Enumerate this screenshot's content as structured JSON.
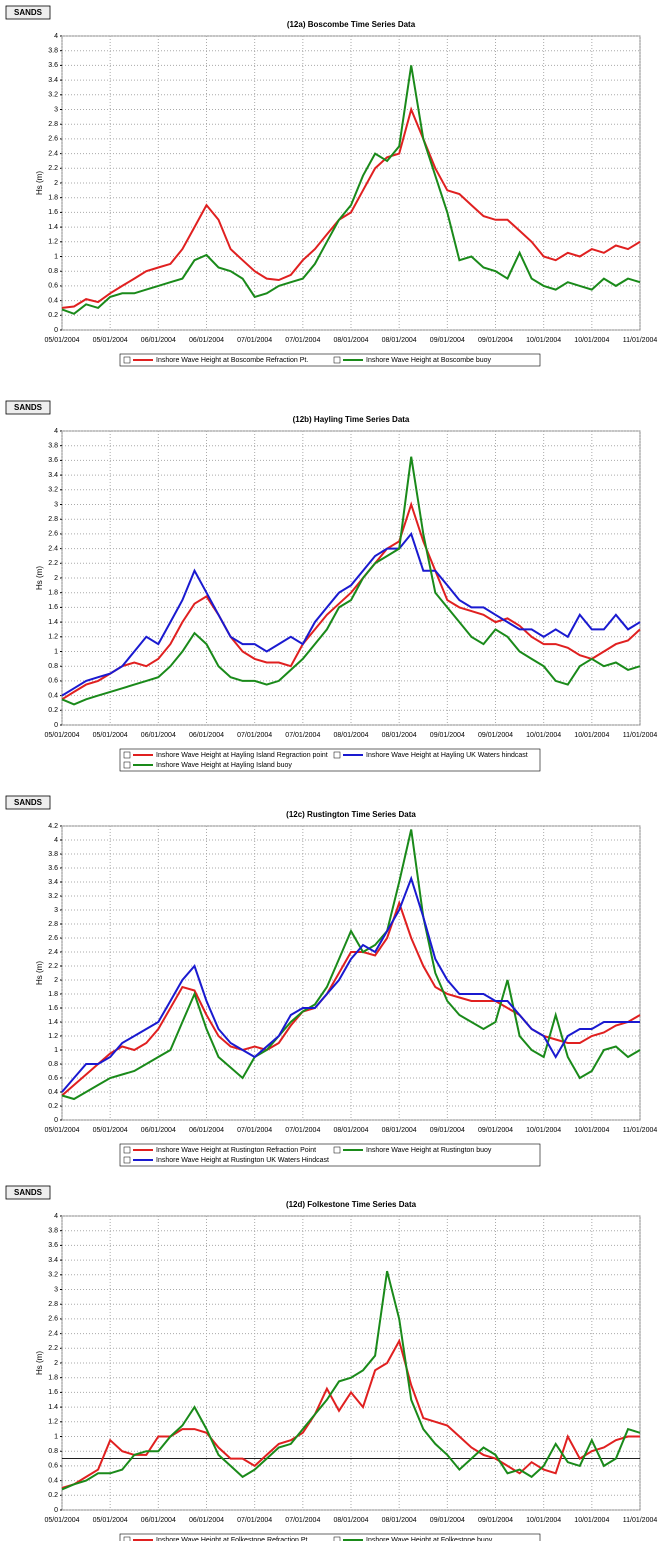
{
  "chart_data": [
    {
      "type": "line",
      "badge": "SANDS",
      "title": "(12a) Boscombe Time Series Data",
      "ylabel": "Hs (m)",
      "categories": [
        "05/01/2004",
        null,
        null,
        null,
        "05/01/2004",
        null,
        null,
        null,
        "06/01/2004",
        null,
        null,
        null,
        "06/01/2004",
        null,
        null,
        null,
        "07/01/2004",
        null,
        null,
        null,
        "07/01/2004",
        null,
        null,
        null,
        "08/01/2004",
        null,
        null,
        null,
        "08/01/2004",
        null,
        null,
        null,
        "09/01/2004",
        null,
        null,
        null,
        "09/01/2004",
        null,
        null,
        null,
        "10/01/2004",
        null,
        null,
        null,
        "10/01/2004",
        null,
        null,
        null,
        "11/01/2004"
      ],
      "ylim": [
        0,
        4
      ],
      "yticks": [
        0,
        0.2,
        0.4,
        0.6,
        0.8,
        1,
        1.2,
        1.4,
        1.6,
        1.8,
        2,
        2.2,
        2.4,
        2.6,
        2.8,
        3,
        3.2,
        3.4,
        3.6,
        3.8,
        4
      ],
      "grid": true,
      "legend": "bottom",
      "series": [
        {
          "name": "Inshore Wave Height at Boscombe Refraction Pt.",
          "color": "#e02020",
          "values": [
            0.3,
            0.32,
            0.42,
            0.38,
            0.5,
            0.6,
            0.7,
            0.8,
            0.85,
            0.9,
            1.1,
            1.4,
            1.7,
            1.5,
            1.1,
            0.95,
            0.8,
            0.7,
            0.68,
            0.75,
            0.95,
            1.1,
            1.3,
            1.5,
            1.6,
            1.9,
            2.2,
            2.35,
            2.4,
            3,
            2.6,
            2.2,
            1.9,
            1.85,
            1.7,
            1.55,
            1.5,
            1.5,
            1.35,
            1.2,
            1,
            0.95,
            1.05,
            1,
            1.1,
            1.05,
            1.15,
            1.1,
            1.2
          ]
        },
        {
          "name": "Inshore Wave Height at Boscombe buoy",
          "color": "#1a8a1a",
          "values": [
            0.28,
            0.22,
            0.35,
            0.3,
            0.45,
            0.5,
            0.5,
            0.55,
            0.6,
            0.65,
            0.7,
            0.95,
            1.02,
            0.85,
            0.8,
            0.7,
            0.45,
            0.5,
            0.6,
            0.65,
            0.7,
            0.9,
            1.2,
            1.5,
            1.7,
            2.1,
            2.4,
            2.3,
            2.5,
            3.6,
            2.6,
            2.1,
            1.6,
            0.95,
            1,
            0.85,
            0.8,
            0.7,
            1.05,
            0.7,
            0.6,
            0.55,
            0.65,
            0.6,
            0.55,
            0.7,
            0.6,
            0.7,
            0.65
          ]
        }
      ]
    },
    {
      "type": "line",
      "badge": "SANDS",
      "title": "(12b) Hayling Time Series Data",
      "ylabel": "Hs (m)",
      "categories": [
        "05/01/2004",
        null,
        null,
        null,
        "05/01/2004",
        null,
        null,
        null,
        "06/01/2004",
        null,
        null,
        null,
        "06/01/2004",
        null,
        null,
        null,
        "07/01/2004",
        null,
        null,
        null,
        "07/01/2004",
        null,
        null,
        null,
        "08/01/2004",
        null,
        null,
        null,
        "08/01/2004",
        null,
        null,
        null,
        "09/01/2004",
        null,
        null,
        null,
        "09/01/2004",
        null,
        null,
        null,
        "10/01/2004",
        null,
        null,
        null,
        "10/01/2004",
        null,
        null,
        null,
        "11/01/2004"
      ],
      "ylim": [
        0,
        4
      ],
      "yticks": [
        0,
        0.2,
        0.4,
        0.6,
        0.8,
        1,
        1.2,
        1.4,
        1.6,
        1.8,
        2,
        2.2,
        2.4,
        2.6,
        2.8,
        3,
        3.2,
        3.4,
        3.6,
        3.8,
        4
      ],
      "grid": true,
      "legend": "bottom",
      "series": [
        {
          "name": "Inshore Wave Height at Hayling Island Regraction point",
          "color": "#e02020",
          "values": [
            0.35,
            0.45,
            0.55,
            0.6,
            0.7,
            0.8,
            0.85,
            0.8,
            0.9,
            1.1,
            1.4,
            1.65,
            1.75,
            1.5,
            1.2,
            1,
            0.9,
            0.85,
            0.85,
            0.8,
            1.1,
            1.3,
            1.5,
            1.65,
            1.8,
            2,
            2.2,
            2.4,
            2.5,
            3,
            2.5,
            2.1,
            1.7,
            1.6,
            1.55,
            1.5,
            1.4,
            1.45,
            1.35,
            1.2,
            1.1,
            1.1,
            1.05,
            0.95,
            0.9,
            1,
            1.1,
            1.15,
            1.3
          ]
        },
        {
          "name": "Inshore Wave Height at Hayling UK Waters hindcast",
          "color": "#1a1ad0",
          "values": [
            0.4,
            0.5,
            0.6,
            0.65,
            0.7,
            0.8,
            1,
            1.2,
            1.1,
            1.4,
            1.7,
            2.1,
            1.8,
            1.5,
            1.2,
            1.1,
            1.1,
            1,
            1.1,
            1.2,
            1.1,
            1.4,
            1.6,
            1.8,
            1.9,
            2.1,
            2.3,
            2.4,
            2.4,
            2.6,
            2.1,
            2.1,
            1.9,
            1.7,
            1.6,
            1.6,
            1.5,
            1.4,
            1.3,
            1.3,
            1.2,
            1.3,
            1.2,
            1.5,
            1.3,
            1.3,
            1.5,
            1.3,
            1.4
          ]
        },
        {
          "name": "Inshore Wave Height at Hayling Island buoy",
          "color": "#1a8a1a",
          "values": [
            0.35,
            0.28,
            0.35,
            0.4,
            0.45,
            0.5,
            0.55,
            0.6,
            0.65,
            0.8,
            1,
            1.25,
            1.1,
            0.8,
            0.65,
            0.6,
            0.6,
            0.55,
            0.6,
            0.75,
            0.9,
            1.1,
            1.3,
            1.6,
            1.7,
            2,
            2.2,
            2.3,
            2.4,
            3.65,
            2.6,
            1.8,
            1.6,
            1.4,
            1.2,
            1.1,
            1.3,
            1.2,
            1,
            0.9,
            0.8,
            0.6,
            0.55,
            0.8,
            0.9,
            0.8,
            0.85,
            0.75,
            0.8
          ]
        }
      ]
    },
    {
      "type": "line",
      "badge": "SANDS",
      "title": "(12c) Rustington Time Series Data",
      "ylabel": "Hs (m)",
      "categories": [
        "05/01/2004",
        null,
        null,
        null,
        "05/01/2004",
        null,
        null,
        null,
        "06/01/2004",
        null,
        null,
        null,
        "06/01/2004",
        null,
        null,
        null,
        "07/01/2004",
        null,
        null,
        null,
        "07/01/2004",
        null,
        null,
        null,
        "08/01/2004",
        null,
        null,
        null,
        "08/01/2004",
        null,
        null,
        null,
        "09/01/2004",
        null,
        null,
        null,
        "09/01/2004",
        null,
        null,
        null,
        "10/01/2004",
        null,
        null,
        null,
        "10/01/2004",
        null,
        null,
        null,
        "11/01/2004"
      ],
      "ylim": [
        0,
        4.2
      ],
      "yticks": [
        0,
        0.2,
        0.4,
        0.6,
        0.8,
        1,
        1.2,
        1.4,
        1.6,
        1.8,
        2,
        2.2,
        2.4,
        2.6,
        2.8,
        3,
        3.2,
        3.4,
        3.6,
        3.8,
        4,
        4.2
      ],
      "grid": true,
      "legend": "bottom",
      "series": [
        {
          "name": "Inshore Wave Height at Rustington Refraction  Point",
          "color": "#e02020",
          "values": [
            0.35,
            0.5,
            0.65,
            0.8,
            0.95,
            1.05,
            1,
            1.1,
            1.3,
            1.6,
            1.9,
            1.85,
            1.5,
            1.2,
            1.05,
            1,
            1.05,
            1,
            1.1,
            1.35,
            1.55,
            1.6,
            1.8,
            2.1,
            2.4,
            2.4,
            2.35,
            2.6,
            3.1,
            2.6,
            2.2,
            1.9,
            1.8,
            1.75,
            1.7,
            1.7,
            1.7,
            1.6,
            1.5,
            1.3,
            1.2,
            1.15,
            1.1,
            1.1,
            1.2,
            1.25,
            1.35,
            1.4,
            1.5
          ]
        },
        {
          "name": "Inshore Wave Height at Rustington buoy",
          "color": "#1a8a1a",
          "values": [
            0.35,
            0.3,
            0.4,
            0.5,
            0.6,
            0.65,
            0.7,
            0.8,
            0.9,
            1,
            1.4,
            1.8,
            1.3,
            0.9,
            0.75,
            0.6,
            0.9,
            1,
            1.2,
            1.4,
            1.55,
            1.65,
            1.9,
            2.3,
            2.7,
            2.4,
            2.5,
            2.7,
            3.4,
            4.15,
            2.9,
            2.1,
            1.7,
            1.5,
            1.4,
            1.3,
            1.4,
            2,
            1.2,
            1,
            0.9,
            1.5,
            0.9,
            0.6,
            0.7,
            1,
            1.05,
            0.9,
            1
          ]
        },
        {
          "name": "Inshore Wave Height at Rustington UK Waters Hindcast",
          "color": "#1a1ad0",
          "values": [
            0.4,
            0.6,
            0.8,
            0.8,
            0.9,
            1.1,
            1.2,
            1.3,
            1.4,
            1.7,
            2,
            2.2,
            1.7,
            1.3,
            1.1,
            1,
            0.9,
            1.05,
            1.2,
            1.5,
            1.6,
            1.6,
            1.8,
            2,
            2.3,
            2.5,
            2.4,
            2.7,
            3,
            3.45,
            2.9,
            2.3,
            2,
            1.8,
            1.8,
            1.8,
            1.7,
            1.7,
            1.5,
            1.3,
            1.2,
            0.9,
            1.2,
            1.3,
            1.3,
            1.4,
            1.4,
            1.4,
            1.4
          ]
        }
      ]
    },
    {
      "type": "line",
      "badge": "SANDS",
      "title": "(12d) Folkestone Time Series Data",
      "ylabel": "Hs (m)",
      "categories": [
        "05/01/2004",
        null,
        null,
        null,
        "05/01/2004",
        null,
        null,
        null,
        "06/01/2004",
        null,
        null,
        null,
        "06/01/2004",
        null,
        null,
        null,
        "07/01/2004",
        null,
        null,
        null,
        "07/01/2004",
        null,
        null,
        null,
        "08/01/2004",
        null,
        null,
        null,
        "08/01/2004",
        null,
        null,
        null,
        "09/01/2004",
        null,
        null,
        null,
        "09/01/2004",
        null,
        null,
        null,
        "10/01/2004",
        null,
        null,
        null,
        "10/01/2004",
        null,
        null,
        null,
        "11/01/2004"
      ],
      "ylim": [
        0,
        4
      ],
      "yticks": [
        0,
        0.2,
        0.4,
        0.6,
        0.8,
        1,
        1.2,
        1.4,
        1.6,
        1.8,
        2,
        2.2,
        2.4,
        2.6,
        2.8,
        3,
        3.2,
        3.4,
        3.6,
        3.8,
        4
      ],
      "grid": true,
      "legend": "bottom",
      "hline": 0.7,
      "series": [
        {
          "name": "Inshore Wave Height at Folkestone Refraction Pt.",
          "color": "#e02020",
          "values": [
            0.3,
            0.35,
            0.45,
            0.55,
            0.95,
            0.8,
            0.75,
            0.75,
            1,
            1,
            1.1,
            1.1,
            1.05,
            0.85,
            0.7,
            0.7,
            0.6,
            0.75,
            0.9,
            0.95,
            1.05,
            1.3,
            1.65,
            1.35,
            1.6,
            1.4,
            1.9,
            2,
            2.3,
            1.7,
            1.25,
            1.2,
            1.15,
            1,
            0.85,
            0.75,
            0.7,
            0.6,
            0.5,
            0.65,
            0.55,
            0.5,
            1,
            0.7,
            0.8,
            0.85,
            0.95,
            1,
            1
          ]
        },
        {
          "name": "Inshore Wave Height at Folkestone buoy",
          "color": "#1a8a1a",
          "values": [
            0.28,
            0.35,
            0.4,
            0.5,
            0.5,
            0.55,
            0.75,
            0.8,
            0.8,
            1,
            1.15,
            1.4,
            1.1,
            0.75,
            0.6,
            0.45,
            0.55,
            0.7,
            0.85,
            0.9,
            1.1,
            1.3,
            1.5,
            1.75,
            1.8,
            1.9,
            2.1,
            3.25,
            2.6,
            1.5,
            1.1,
            0.9,
            0.75,
            0.55,
            0.7,
            0.85,
            0.75,
            0.5,
            0.55,
            0.45,
            0.6,
            0.9,
            0.65,
            0.6,
            0.95,
            0.6,
            0.7,
            1.1,
            1.05
          ]
        }
      ]
    }
  ]
}
